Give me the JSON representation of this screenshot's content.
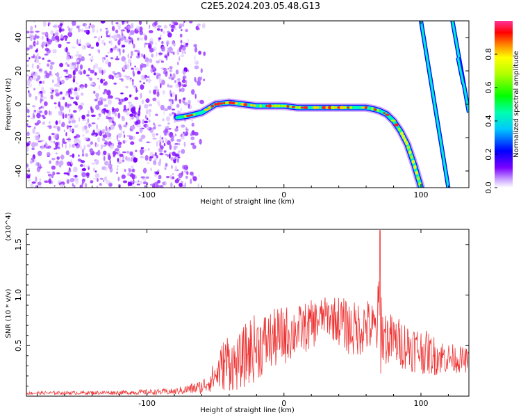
{
  "title": "C2E5.2024.203.05.48.G13",
  "chart_data": [
    {
      "type": "heatmap",
      "xlabel": "Height of straight line (km)",
      "ylabel": "Frequency (Hz)",
      "xlim": [
        -188,
        135
      ],
      "ylim": [
        -50,
        50
      ],
      "xticks": [
        -100,
        0,
        100
      ],
      "yticks": [
        -40,
        -20,
        0,
        20,
        40
      ],
      "grid": false,
      "colorbar": {
        "label": "Normalized spectral amplitude",
        "range": [
          0,
          1
        ],
        "ticks": [
          0.0,
          0.2,
          0.4,
          0.6,
          0.8
        ],
        "tick_labels": [
          "0.0",
          "0.2",
          "0.4",
          "0.6",
          "0.8"
        ]
      },
      "features": {
        "noise_region_x": [
          -188,
          -70
        ],
        "main_track": {
          "x": [
            -78,
            -70,
            -60,
            -50,
            -40,
            -30,
            -20,
            -10,
            0,
            10,
            20,
            30,
            40,
            50,
            60,
            66,
            70,
            75,
            80,
            85,
            90,
            95,
            100
          ],
          "y": [
            -8,
            -7,
            -5,
            0,
            1,
            0,
            -1,
            -1,
            -1,
            -2,
            -2,
            -2,
            -2,
            -2,
            -2,
            -3,
            -4,
            -6,
            -10,
            -16,
            -24,
            -36,
            -50
          ]
        },
        "lines": [
          {
            "x1": 100,
            "y1": 50,
            "x2": 120,
            "y2": -50
          },
          {
            "x1": 123,
            "y1": 50,
            "x2": 135,
            "y2": -5
          },
          {
            "x1": 127,
            "y1": 28,
            "x2": 131,
            "y2": 12
          }
        ]
      }
    },
    {
      "type": "line",
      "xlabel": "Height of straight line (km)",
      "ylabel": "SNR (10 * v/v)",
      "y_multiplier": "(x10^4)",
      "xlim": [
        -188,
        135
      ],
      "ylim": [
        0,
        16500
      ],
      "xticks": [
        -100,
        0,
        100
      ],
      "yticks": [
        5000,
        10000,
        15000
      ],
      "ytick_labels": [
        "0.5",
        "1.0",
        "1.5"
      ],
      "grid": false,
      "series": [
        {
          "color": "#ee3333",
          "envelope": {
            "x": [
              -188,
              -120,
              -80,
              -60,
              -50,
              -42,
              -35,
              -25,
              -10,
              0,
              10,
              20,
              30,
              40,
              50,
              60,
              68,
              70,
              72,
              80,
              90,
              100,
              110,
              120,
              135
            ],
            "mean": [
              300,
              350,
              450,
              900,
              2000,
              3500,
              3000,
              4500,
              5500,
              6000,
              6500,
              7000,
              8000,
              7500,
              6500,
              7000,
              6500,
              9000,
              6000,
              5500,
              5000,
              4500,
              4000,
              3800,
              3500
            ],
            "amplitude": [
              150,
              200,
              300,
              700,
              1500,
              3000,
              2500,
              3500,
              3000,
              3000,
              2500,
              2500,
              1800,
              2500,
              2800,
              2800,
              2500,
              7500,
              3000,
              2500,
              2500,
              2300,
              2000,
              1500,
              1200
            ]
          }
        }
      ]
    }
  ]
}
